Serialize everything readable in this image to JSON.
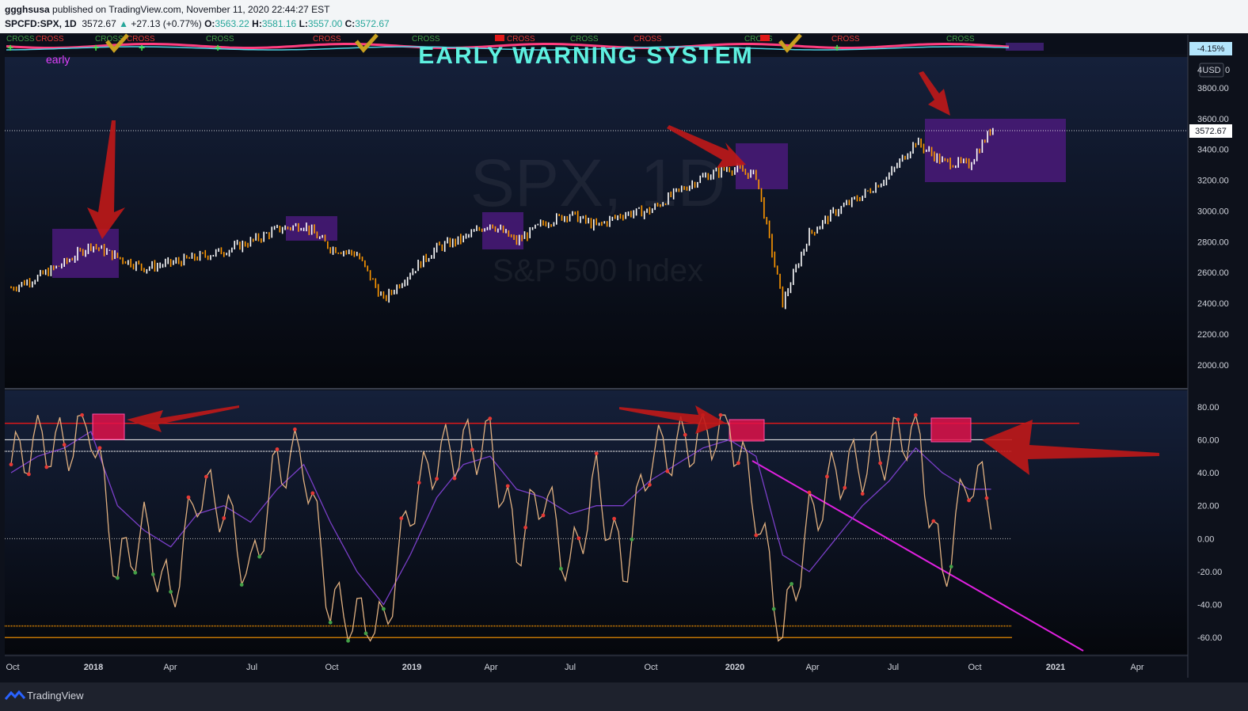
{
  "header": {
    "publisher": "ggghsusa",
    "published_text": "published on TradingView.com, November 11, 2020 22:44:27 EST",
    "symbol": "SPCFD:SPX, 1D",
    "last": "3572.67",
    "change": "+27.13 (+0.77%)",
    "o_label": "O:",
    "o_value": "3563.22",
    "h_label": "H:",
    "h_value": "3581.16",
    "l_label": "L:",
    "l_value": "3557.00",
    "c_label": "C:",
    "c_value": "3572.67"
  },
  "indicator_strip": {
    "title": "EARLY WARNING SYSTEM",
    "subtitle": "early",
    "value_badge": "-4.15%",
    "cross_label": "CROSS"
  },
  "watermark": {
    "symbol": "SPX, 1D",
    "name": "S&P 500 Index"
  },
  "price_axis": {
    "currency": "USD",
    "last_price_badge": "3572.67",
    "top_partial_label": "4",
    "top_partial_label_right": "0",
    "ticks": [
      "3800.00",
      "3600.00",
      "3400.00",
      "3200.00",
      "3000.00",
      "2800.00",
      "2600.00",
      "2400.00",
      "2200.00",
      "2000.00"
    ]
  },
  "osc_axis": {
    "ticks": [
      "80.00",
      "60.00",
      "40.00",
      "20.00",
      "0.00",
      "-20.00",
      "-40.00",
      "-60.00"
    ]
  },
  "x_axis": {
    "labels": [
      "Oct",
      "2018",
      "Apr",
      "Jul",
      "Oct",
      "2019",
      "Apr",
      "Jul",
      "Oct",
      "2020",
      "Apr",
      "Jul",
      "Oct",
      "2021",
      "Apr"
    ],
    "bold_labels": [
      "2018",
      "2019",
      "2020",
      "2021"
    ]
  },
  "footer": {
    "brand": "TradingView"
  },
  "colors": {
    "background": "#121826",
    "up_candle": "#ffffff",
    "down_candle": "#ff9800",
    "highlight_box": "#4a1a7a",
    "arrow": "#c01818",
    "osc_fast": "#e0b080",
    "osc_slow": "#7a3fc8",
    "trendline": "#e020e0",
    "overbought_line": "#e01818",
    "oversold_line": "#ff9800"
  },
  "chart_data": [
    {
      "type": "line",
      "title": "SPX, 1D",
      "subtitle": "S&P 500 Index",
      "x": [
        "2017-10",
        "2017-11",
        "2017-12",
        "2018-01",
        "2018-02",
        "2018-03",
        "2018-04",
        "2018-05",
        "2018-06",
        "2018-07",
        "2018-08",
        "2018-09",
        "2018-10",
        "2018-11",
        "2018-12",
        "2019-01",
        "2019-02",
        "2019-03",
        "2019-04",
        "2019-05",
        "2019-06",
        "2019-07",
        "2019-08",
        "2019-09",
        "2019-10",
        "2019-11",
        "2019-12",
        "2020-01",
        "2020-02",
        "2020-03",
        "2020-04",
        "2020-05",
        "2020-06",
        "2020-07",
        "2020-08",
        "2020-09",
        "2020-10",
        "2020-11"
      ],
      "series": [
        {
          "values": [
            2500,
            2570,
            2660,
            2780,
            2700,
            2630,
            2660,
            2700,
            2740,
            2800,
            2880,
            2910,
            2760,
            2720,
            2420,
            2600,
            2760,
            2820,
            2920,
            2800,
            2920,
            2980,
            2900,
            2980,
            3000,
            3120,
            3220,
            3280,
            3230,
            2400,
            2850,
            3000,
            3100,
            3230,
            3450,
            3320,
            3300,
            3572.67
          ]
        }
      ],
      "ylim": [
        1850,
        4000
      ],
      "grid": false
    },
    {
      "type": "line",
      "x": [
        "2017-10",
        "2017-11",
        "2017-12",
        "2018-01",
        "2018-02",
        "2018-03",
        "2018-04",
        "2018-05",
        "2018-06",
        "2018-07",
        "2018-08",
        "2018-09",
        "2018-10",
        "2018-11",
        "2018-12",
        "2019-01",
        "2019-02",
        "2019-03",
        "2019-04",
        "2019-05",
        "2019-06",
        "2019-07",
        "2019-08",
        "2019-09",
        "2019-10",
        "2019-11",
        "2019-12",
        "2020-01",
        "2020-02",
        "2020-03",
        "2020-04",
        "2020-05",
        "2020-06",
        "2020-07",
        "2020-08",
        "2020-09",
        "2020-10",
        "2020-11"
      ],
      "series": [
        {
          "values": [
            45,
            60,
            55,
            72,
            -20,
            5,
            -38,
            30,
            20,
            -25,
            45,
            50,
            -40,
            -50,
            -55,
            20,
            50,
            55,
            58,
            -5,
            30,
            -20,
            35,
            -20,
            50,
            55,
            62,
            70,
            20,
            -60,
            10,
            40,
            45,
            55,
            70,
            -25,
            40,
            20
          ]
        },
        {
          "values": [
            40,
            50,
            55,
            65,
            20,
            5,
            -5,
            15,
            20,
            10,
            30,
            45,
            10,
            -20,
            -40,
            -10,
            25,
            45,
            50,
            30,
            25,
            15,
            20,
            20,
            35,
            45,
            55,
            60,
            50,
            -10,
            -20,
            0,
            20,
            35,
            55,
            40,
            30,
            30
          ]
        }
      ],
      "ylim": [
        -70,
        90
      ],
      "reference_lines": [
        70,
        60,
        53,
        0,
        -53,
        -60
      ],
      "grid": false
    }
  ]
}
